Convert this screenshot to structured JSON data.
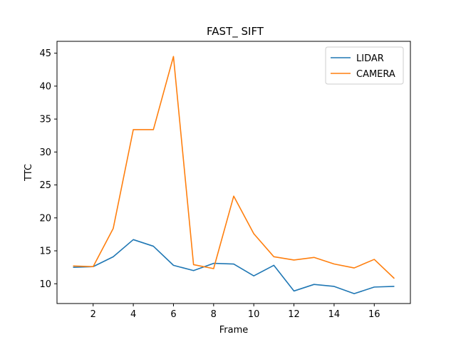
{
  "chart_data": {
    "type": "line",
    "title": "FAST_ SIFT",
    "xlabel": "Frame",
    "ylabel": "TTC",
    "xlim": [
      0.2,
      17.8
    ],
    "ylim": [
      7.0,
      46.8
    ],
    "xticks": [
      2,
      4,
      6,
      8,
      10,
      12,
      14,
      16
    ],
    "yticks": [
      10,
      15,
      20,
      25,
      30,
      35,
      40,
      45
    ],
    "grid": false,
    "legend_position": "top-right",
    "x": [
      1,
      2,
      3,
      4,
      5,
      6,
      7,
      8,
      9,
      10,
      11,
      12,
      13,
      14,
      15,
      16,
      17
    ],
    "series": [
      {
        "name": "LIDAR",
        "color": "#1f77b4",
        "values": [
          12.5,
          12.6,
          14.1,
          16.7,
          15.7,
          12.8,
          12.0,
          13.1,
          13.0,
          11.2,
          12.8,
          8.9,
          9.9,
          9.6,
          8.5,
          9.5,
          9.6
        ]
      },
      {
        "name": "CAMERA",
        "color": "#ff7f0e",
        "values": [
          12.7,
          12.6,
          18.4,
          33.4,
          33.4,
          44.5,
          12.9,
          12.3,
          23.3,
          17.6,
          14.1,
          13.6,
          14.0,
          13.0,
          12.4,
          13.7,
          10.8
        ]
      }
    ]
  }
}
